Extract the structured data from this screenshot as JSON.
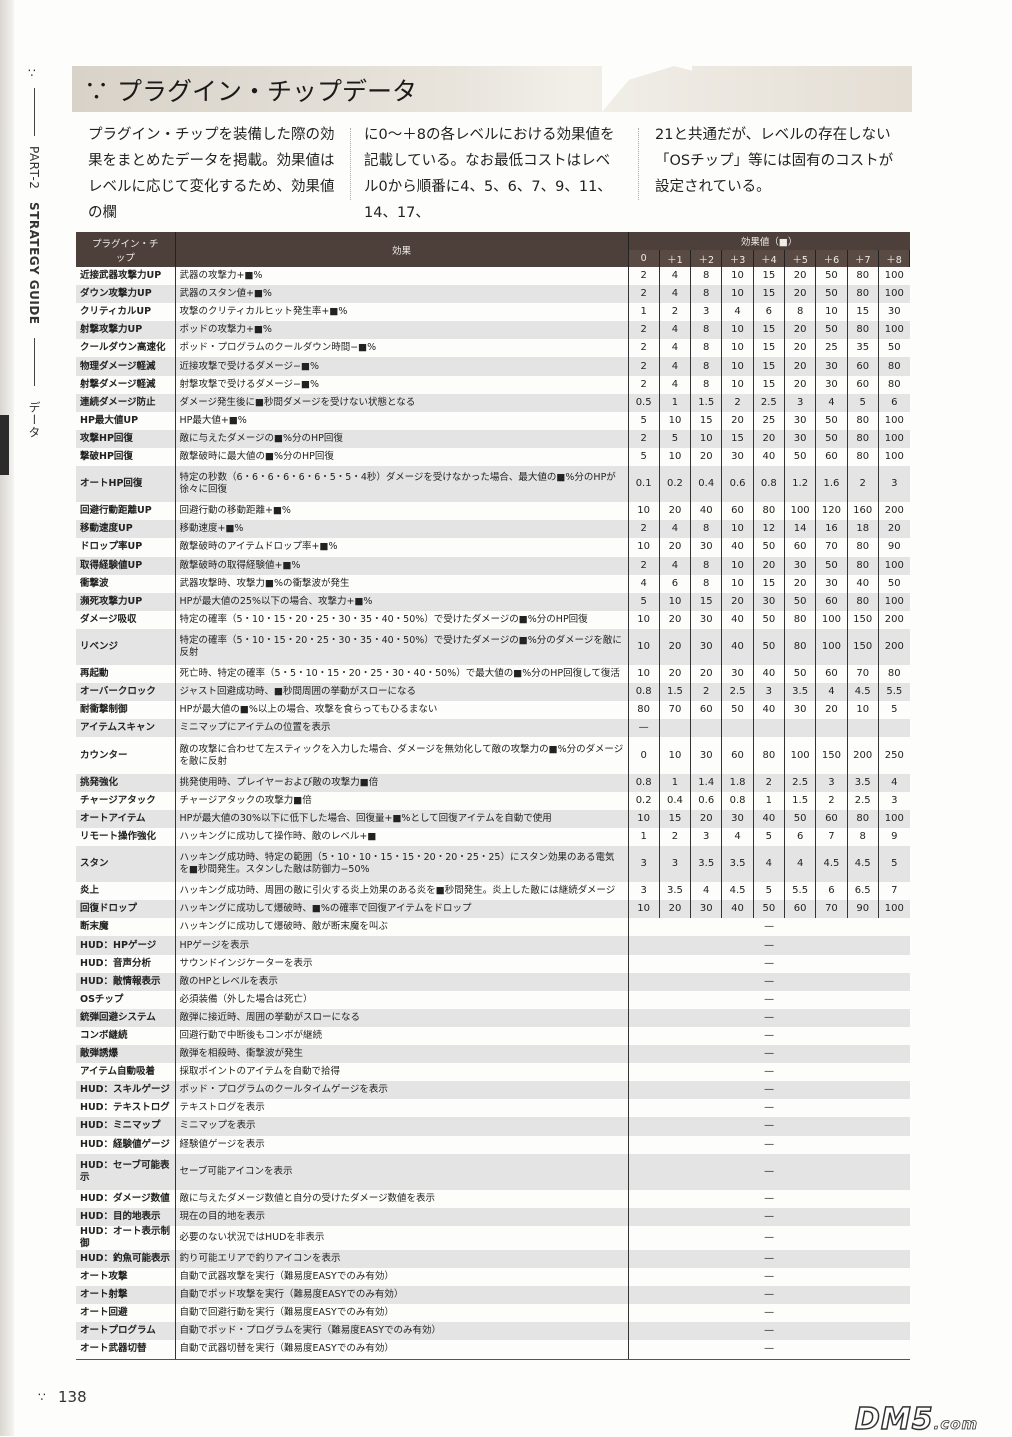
{
  "sidebar": {
    "part": "PART-2",
    "guide": "STRATEGY GUIDE",
    "section": "データ"
  },
  "title": "∵ プラグイン・チップデータ",
  "intro": [
    "プラグイン・チップを装備した際の効果をまとめたデータを掲載。効果値はレベルに応じて変化するため、効果値の欄",
    "に0〜＋8の各レベルにおける効果値を記載している。なお最低コストはレベル0から順番に4、5、6、7、9、11、14、17、",
    "21と共通だが、レベルの存在しない「OSチップ」等には固有のコストが設定されている。"
  ],
  "table": {
    "headers": {
      "name": "プラグイン・チップ",
      "effect": "効果",
      "values": "効果値（■）"
    },
    "levels": [
      "0",
      "＋1",
      "＋2",
      "＋3",
      "＋4",
      "＋5",
      "＋6",
      "＋7",
      "＋8"
    ],
    "rows": [
      {
        "name": "近接武器攻撃力UP",
        "effect": "武器の攻撃力+■%",
        "values": [
          "2",
          "4",
          "8",
          "10",
          "15",
          "20",
          "50",
          "80",
          "100"
        ]
      },
      {
        "name": "ダウン攻撃力UP",
        "effect": "武器のスタン値+■%",
        "values": [
          "2",
          "4",
          "8",
          "10",
          "15",
          "20",
          "50",
          "80",
          "100"
        ]
      },
      {
        "name": "クリティカルUP",
        "effect": "攻撃のクリティカルヒット発生率+■%",
        "values": [
          "1",
          "2",
          "3",
          "4",
          "6",
          "8",
          "10",
          "15",
          "30"
        ]
      },
      {
        "name": "射撃攻撃力UP",
        "effect": "ポッドの攻撃力+■%",
        "values": [
          "2",
          "4",
          "8",
          "10",
          "15",
          "20",
          "50",
          "80",
          "100"
        ]
      },
      {
        "name": "クールダウン高速化",
        "effect": "ポッド・プログラムのクールダウン時間−■%",
        "values": [
          "2",
          "4",
          "8",
          "10",
          "15",
          "20",
          "25",
          "35",
          "50"
        ]
      },
      {
        "name": "物理ダメージ軽減",
        "effect": "近接攻撃で受けるダメージ−■%",
        "values": [
          "2",
          "4",
          "8",
          "10",
          "15",
          "20",
          "30",
          "60",
          "80"
        ]
      },
      {
        "name": "射撃ダメージ軽減",
        "effect": "射撃攻撃で受けるダメージ−■%",
        "values": [
          "2",
          "4",
          "8",
          "10",
          "15",
          "20",
          "30",
          "60",
          "80"
        ]
      },
      {
        "name": "連続ダメージ防止",
        "effect": "ダメージ発生後に■秒間ダメージを受けない状態となる",
        "values": [
          "0.5",
          "1",
          "1.5",
          "2",
          "2.5",
          "3",
          "4",
          "5",
          "6"
        ]
      },
      {
        "name": "HP最大値UP",
        "effect": "HP最大値+■%",
        "values": [
          "5",
          "10",
          "15",
          "20",
          "25",
          "30",
          "50",
          "80",
          "100"
        ]
      },
      {
        "name": "攻撃HP回復",
        "effect": "敵に与えたダメージの■%分のHP回復",
        "values": [
          "2",
          "5",
          "10",
          "15",
          "20",
          "30",
          "50",
          "80",
          "100"
        ]
      },
      {
        "name": "撃破HP回復",
        "effect": "敵撃破時に最大値の■%分のHP回復",
        "values": [
          "5",
          "10",
          "20",
          "30",
          "40",
          "50",
          "60",
          "80",
          "100"
        ]
      },
      {
        "name": "オートHP回復",
        "effect": "特定の秒数（6・6・6・6・6・6・5・5・4秒）ダメージを受けなかった場合、最大値の■%分のHPが徐々に回復",
        "values": [
          "0.1",
          "0.2",
          "0.4",
          "0.6",
          "0.8",
          "1.2",
          "1.6",
          "2",
          "3"
        ],
        "tall": true
      },
      {
        "name": "回避行動距離UP",
        "effect": "回避行動の移動距離+■%",
        "values": [
          "10",
          "20",
          "40",
          "60",
          "80",
          "100",
          "120",
          "160",
          "200"
        ]
      },
      {
        "name": "移動速度UP",
        "effect": "移動速度+■%",
        "values": [
          "2",
          "4",
          "8",
          "10",
          "12",
          "14",
          "16",
          "18",
          "20"
        ]
      },
      {
        "name": "ドロップ率UP",
        "effect": "敵撃破時のアイテムドロップ率+■%",
        "values": [
          "10",
          "20",
          "30",
          "40",
          "50",
          "60",
          "70",
          "80",
          "90"
        ]
      },
      {
        "name": "取得経験値UP",
        "effect": "敵撃破時の取得経験値+■%",
        "values": [
          "2",
          "4",
          "8",
          "10",
          "20",
          "30",
          "50",
          "80",
          "100"
        ]
      },
      {
        "name": "衝撃波",
        "effect": "武器攻撃時、攻撃力■%の衝撃波が発生",
        "values": [
          "4",
          "6",
          "8",
          "10",
          "15",
          "20",
          "30",
          "40",
          "50"
        ]
      },
      {
        "name": "瀕死攻撃力UP",
        "effect": "HPが最大値の25%以下の場合、攻撃力+■%",
        "values": [
          "5",
          "10",
          "15",
          "20",
          "30",
          "50",
          "60",
          "80",
          "100"
        ]
      },
      {
        "name": "ダメージ吸収",
        "effect": "特定の確率（5・10・15・20・25・30・35・40・50%）で受けたダメージの■%分のHP回復",
        "values": [
          "10",
          "20",
          "30",
          "40",
          "50",
          "80",
          "100",
          "150",
          "200"
        ]
      },
      {
        "name": "リベンジ",
        "effect": "特定の確率（5・10・15・20・25・30・35・40・50%）で受けたダメージの■%分のダメージを敵に反射",
        "values": [
          "10",
          "20",
          "30",
          "40",
          "50",
          "80",
          "100",
          "150",
          "200"
        ],
        "tall": true
      },
      {
        "name": "再起動",
        "effect": "死亡時、特定の確率（5・5・10・15・20・25・30・40・50%）で最大値の■%分のHP回復して復活",
        "values": [
          "10",
          "20",
          "20",
          "30",
          "40",
          "50",
          "60",
          "70",
          "80"
        ]
      },
      {
        "name": "オーバークロック",
        "effect": "ジャスト回避成功時、■秒間周囲の挙動がスローになる",
        "values": [
          "0.8",
          "1.5",
          "2",
          "2.5",
          "3",
          "3.5",
          "4",
          "4.5",
          "5.5"
        ]
      },
      {
        "name": "耐衝撃制御",
        "effect": "HPが最大値の■%以上の場合、攻撃を食らってもひるまない",
        "values": [
          "80",
          "70",
          "60",
          "50",
          "40",
          "30",
          "20",
          "10",
          "5"
        ]
      },
      {
        "name": "アイテムスキャン",
        "effect": "ミニマップにアイテムの位置を表示",
        "values": [
          "—",
          "",
          "",
          "",
          "",
          "",
          "",
          "",
          ""
        ]
      },
      {
        "name": "カウンター",
        "effect": "敵の攻撃に合わせて左スティックを入力した場合、ダメージを無効化して敵の攻撃力の■%分のダメージを敵に反射",
        "values": [
          "0",
          "10",
          "30",
          "60",
          "80",
          "100",
          "150",
          "200",
          "250"
        ],
        "tall": true
      },
      {
        "name": "挑発強化",
        "effect": "挑発使用時、プレイヤーおよび敵の攻撃力■倍",
        "values": [
          "0.8",
          "1",
          "1.4",
          "1.8",
          "2",
          "2.5",
          "3",
          "3.5",
          "4"
        ]
      },
      {
        "name": "チャージアタック",
        "effect": "チャージアタックの攻撃力■倍",
        "values": [
          "0.2",
          "0.4",
          "0.6",
          "0.8",
          "1",
          "1.5",
          "2",
          "2.5",
          "3"
        ]
      },
      {
        "name": "オートアイテム",
        "effect": "HPが最大値の30%以下に低下した場合、回復量+■%として回復アイテムを自動で使用",
        "values": [
          "10",
          "15",
          "20",
          "30",
          "40",
          "50",
          "60",
          "80",
          "100"
        ]
      },
      {
        "name": "リモート操作強化",
        "effect": "ハッキングに成功して操作時、敵のレベル+■",
        "values": [
          "1",
          "2",
          "3",
          "4",
          "5",
          "6",
          "7",
          "8",
          "9"
        ]
      },
      {
        "name": "スタン",
        "effect": "ハッキング成功時、特定の範囲（5・10・10・15・15・20・20・25・25）にスタン効果のある電気を■秒間発生。スタンした敵は防御力−50%",
        "values": [
          "3",
          "3",
          "3.5",
          "3.5",
          "4",
          "4",
          "4.5",
          "4.5",
          "5"
        ],
        "tall": true
      },
      {
        "name": "炎上",
        "effect": "ハッキング成功時、周囲の敵に引火する炎上効果のある炎を■秒間発生。炎上した敵には継続ダメージ",
        "values": [
          "3",
          "3.5",
          "4",
          "4.5",
          "5",
          "5.5",
          "6",
          "6.5",
          "7"
        ]
      },
      {
        "name": "回復ドロップ",
        "effect": "ハッキングに成功して爆破時、■%の確率で回復アイテムをドロップ",
        "values": [
          "10",
          "20",
          "30",
          "40",
          "50",
          "60",
          "70",
          "90",
          "100"
        ]
      },
      {
        "name": "断末魔",
        "effect": "ハッキングに成功して爆破時、敵が断末魔を叫ぶ",
        "dash": "—"
      },
      {
        "name": "HUD：HPゲージ",
        "effect": "HPゲージを表示",
        "dash": "—"
      },
      {
        "name": "HUD：音声分析",
        "effect": "サウンドインジケーターを表示",
        "dash": "—"
      },
      {
        "name": "HUD：敵情報表示",
        "effect": "敵のHPとレベルを表示",
        "dash": "—"
      },
      {
        "name": "OSチップ",
        "effect": "必須装備（外した場合は死亡）",
        "dash": "—"
      },
      {
        "name": "銃弾回避システム",
        "effect": "敵弾に接近時、周囲の挙動がスローになる",
        "dash": "—"
      },
      {
        "name": "コンボ継続",
        "effect": "回避行動で中断後もコンボが継続",
        "dash": "—"
      },
      {
        "name": "敵弾誘爆",
        "effect": "敵弾を相殺時、衝撃波が発生",
        "dash": "—"
      },
      {
        "name": "アイテム自動吸着",
        "effect": "採取ポイントのアイテムを自動で拾得",
        "dash": "—"
      },
      {
        "name": "HUD：スキルゲージ",
        "effect": "ポッド・プログラムのクールタイムゲージを表示",
        "dash": "—"
      },
      {
        "name": "HUD：テキストログ",
        "effect": "テキストログを表示",
        "dash": "—"
      },
      {
        "name": "HUD：ミニマップ",
        "effect": "ミニマップを表示",
        "dash": "—"
      },
      {
        "name": "HUD：経験値ゲージ",
        "effect": "経験値ゲージを表示",
        "dash": "—"
      },
      {
        "name": "HUD：セーブ可能表示",
        "effect": "セーブ可能アイコンを表示",
        "dash": "—",
        "tall": true
      },
      {
        "name": "HUD：ダメージ数値",
        "effect": "敵に与えたダメージ数値と自分の受けたダメージ数値を表示",
        "dash": "—"
      },
      {
        "name": "HUD：目的地表示",
        "effect": "現在の目的地を表示",
        "dash": "—"
      },
      {
        "name": "HUD：オート表示制御",
        "effect": "必要のない状況ではHUDを非表示",
        "dash": "—"
      },
      {
        "name": "HUD：釣魚可能表示",
        "effect": "釣り可能エリアで釣りアイコンを表示",
        "dash": "—"
      },
      {
        "name": "オート攻撃",
        "effect": "自動で武器攻撃を実行（難易度EASYでのみ有効）",
        "dash": "—"
      },
      {
        "name": "オート射撃",
        "effect": "自動でポッド攻撃を実行（難易度EASYでのみ有効）",
        "dash": "—"
      },
      {
        "name": "オート回避",
        "effect": "自動で回避行動を実行（難易度EASYでのみ有効）",
        "dash": "—"
      },
      {
        "name": "オートプログラム",
        "effect": "自動でポッド・プログラムを実行（難易度EASYでのみ有効）",
        "dash": "—"
      },
      {
        "name": "オート武器切替",
        "effect": "自動で武器切替を実行（難易度EASYでのみ有効）",
        "dash": "—"
      }
    ]
  },
  "footer": {
    "page": "138",
    "watermark": "DM5.com"
  },
  "colors": {
    "header_bg": "#4d403b",
    "row_shade": "#e4e4e4"
  }
}
